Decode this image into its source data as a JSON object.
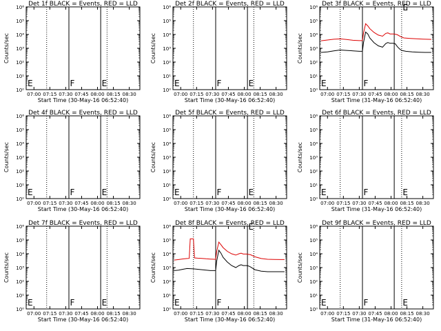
{
  "colors": {
    "events": "#000000",
    "lld": "#dd0000",
    "axes": "#000000",
    "background": "#ffffff"
  },
  "figure": {
    "rows": 3,
    "cols": 3
  },
  "chart_data": [
    {
      "type": "line",
      "title": "Det 1f BLACK = Events, RED = LLD",
      "xlabel": "Start Time (30-May-16 06:52:40)",
      "ylabel": "Counts/sec",
      "xlim": [
        "06:52:40",
        "08:40:00"
      ],
      "x_ticks": [
        "07:00",
        "07:15",
        "07:30",
        "07:45",
        "08:00",
        "08:15",
        "08:30"
      ],
      "ylim": [
        1,
        1000000
      ],
      "yscale": "log",
      "y_ticks": [
        "10^0",
        "10^1",
        "10^2",
        "10^3",
        "10^4",
        "10^5",
        "10^6"
      ],
      "solid_lines": [
        "07:33",
        "08:03"
      ],
      "dotted_lines": [
        "07:12",
        "08:09"
      ],
      "markers": [
        {
          "text": "E",
          "x": "06:54"
        },
        {
          "text": "F",
          "x": "07:34"
        },
        {
          "text": "E",
          "x": "08:04"
        }
      ],
      "series": []
    },
    {
      "type": "line",
      "title": "Det 2f BLACK = Events, RED = LLD",
      "xlabel": "Start Time (30-May-16 06:52:40)",
      "ylabel": "Counts/sec",
      "xlim": [
        "06:52:40",
        "08:40:00"
      ],
      "x_ticks": [
        "07:00",
        "07:15",
        "07:30",
        "07:45",
        "08:00",
        "08:15",
        "08:30"
      ],
      "ylim": [
        1,
        1000000
      ],
      "yscale": "log",
      "y_ticks": [
        "10^0",
        "10^1",
        "10^2",
        "10^3",
        "10^4",
        "10^5",
        "10^6"
      ],
      "solid_lines": [
        "07:33",
        "08:03"
      ],
      "dotted_lines": [
        "07:12",
        "08:09"
      ],
      "markers": [
        {
          "text": "E",
          "x": "06:54"
        },
        {
          "text": "F",
          "x": "07:34"
        },
        {
          "text": "E",
          "x": "08:04"
        }
      ],
      "series": []
    },
    {
      "type": "line",
      "title": "Det 3f BLACK = Events, RED = LLD",
      "xlabel": "Start Time (31-May-16 06:52:40)",
      "ylabel": "Counts/sec",
      "xlim": [
        "06:52:40",
        "08:40:00"
      ],
      "x_ticks": [
        "07:00",
        "07:15",
        "07:30",
        "07:45",
        "08:00",
        "08:15",
        "08:30"
      ],
      "ylim": [
        1,
        1000000
      ],
      "yscale": "log",
      "y_ticks": [
        "10^0",
        "10^1",
        "10^2",
        "10^3",
        "10^4",
        "10^5",
        "10^6"
      ],
      "solid_lines": [
        "07:33",
        "08:03"
      ],
      "dotted_lines": [
        "07:12",
        "08:10"
      ],
      "markers": [
        {
          "text": "E",
          "x": "06:54"
        },
        {
          "text": "F",
          "x": "07:34"
        },
        {
          "text": "E",
          "x": "08:11",
          "y": 900000
        }
      ],
      "series": [
        {
          "name": "LLD",
          "color": "#dd0000",
          "x": [
            "06:54",
            "07:00",
            "07:06",
            "07:12",
            "07:18",
            "07:24",
            "07:30",
            "07:33",
            "07:34",
            "07:36",
            "07:38",
            "07:40",
            "07:44",
            "07:48",
            "07:52",
            "07:55",
            "07:57",
            "07:59",
            "08:02",
            "08:04",
            "08:06",
            "08:09",
            "08:12",
            "08:18",
            "08:24",
            "08:30",
            "08:38"
          ],
          "y": [
            3500,
            4000,
            4500,
            4800,
            4300,
            3800,
            3600,
            3600,
            12000,
            60000,
            42000,
            26000,
            14000,
            9000,
            7500,
            12000,
            13000,
            11000,
            11000,
            10500,
            9500,
            7000,
            5600,
            5200,
            4900,
            4600,
            4400
          ]
        },
        {
          "name": "Events",
          "color": "#000000",
          "x": [
            "06:54",
            "07:00",
            "07:06",
            "07:12",
            "07:18",
            "07:24",
            "07:30",
            "07:33",
            "07:34",
            "07:36",
            "07:38",
            "07:40",
            "07:44",
            "07:48",
            "07:52",
            "07:55",
            "07:57",
            "07:59",
            "08:02",
            "08:04",
            "08:06",
            "08:08",
            "08:10",
            "08:14",
            "08:20",
            "08:26",
            "08:32",
            "08:38"
          ],
          "y": [
            500,
            550,
            650,
            750,
            700,
            650,
            600,
            600,
            2500,
            15000,
            11000,
            5500,
            2500,
            1500,
            1200,
            2200,
            2600,
            2300,
            2300,
            2100,
            1300,
            900,
            700,
            600,
            550,
            520,
            500,
            500
          ]
        }
      ]
    },
    {
      "type": "line",
      "title": "Det 4f BLACK = Events, RED = LLD",
      "xlabel": "Start Time (30-May-16 06:52:40)",
      "ylabel": "Counts/sec",
      "xlim": [
        "06:52:40",
        "08:40:00"
      ],
      "x_ticks": [
        "07:00",
        "07:15",
        "07:30",
        "07:45",
        "08:00",
        "08:15",
        "08:30"
      ],
      "ylim": [
        1,
        1000000
      ],
      "yscale": "log",
      "y_ticks": [
        "10^0",
        "10^1",
        "10^2",
        "10^3",
        "10^4",
        "10^5",
        "10^6"
      ],
      "solid_lines": [
        "07:33",
        "08:03"
      ],
      "dotted_lines": [
        "07:12",
        "08:09"
      ],
      "markers": [
        {
          "text": "E",
          "x": "06:54"
        },
        {
          "text": "F",
          "x": "07:34"
        },
        {
          "text": "E",
          "x": "08:04"
        }
      ],
      "series": []
    },
    {
      "type": "line",
      "title": "Det 5f BLACK = Events, RED = LLD",
      "xlabel": "Start Time (30-May-16 06:52:40)",
      "ylabel": "Counts/sec",
      "xlim": [
        "06:52:40",
        "08:40:00"
      ],
      "x_ticks": [
        "07:00",
        "07:15",
        "07:30",
        "07:45",
        "08:00",
        "08:15",
        "08:30"
      ],
      "ylim": [
        1,
        1000000
      ],
      "yscale": "log",
      "y_ticks": [
        "10^0",
        "10^1",
        "10^2",
        "10^3",
        "10^4",
        "10^5",
        "10^6"
      ],
      "solid_lines": [
        "07:33",
        "08:03"
      ],
      "dotted_lines": [
        "07:12",
        "08:09"
      ],
      "markers": [
        {
          "text": "E",
          "x": "06:54"
        },
        {
          "text": "F",
          "x": "07:34"
        },
        {
          "text": "E",
          "x": "08:04"
        }
      ],
      "series": []
    },
    {
      "type": "line",
      "title": "Det 6f BLACK = Events, RED = LLD",
      "xlabel": "Start Time (31-May-16 06:52:40)",
      "ylabel": "Counts/sec",
      "xlim": [
        "06:52:40",
        "08:40:00"
      ],
      "x_ticks": [
        "07:00",
        "07:15",
        "07:30",
        "07:45",
        "08:00",
        "08:15",
        "08:30"
      ],
      "ylim": [
        1,
        1000000
      ],
      "yscale": "log",
      "y_ticks": [
        "10^0",
        "10^1",
        "10^2",
        "10^3",
        "10^4",
        "10^5",
        "10^6"
      ],
      "solid_lines": [
        "07:33",
        "08:03"
      ],
      "dotted_lines": [
        "07:12",
        "08:10"
      ],
      "markers": [
        {
          "text": "E",
          "x": "06:54"
        },
        {
          "text": "F",
          "x": "07:34"
        },
        {
          "text": "E",
          "x": "08:11"
        }
      ],
      "series": []
    },
    {
      "type": "line",
      "title": "Det 7f BLACK = Events, RED = LLD",
      "xlabel": "Start Time (30-May-16 06:52:40)",
      "ylabel": "Counts/sec",
      "xlim": [
        "06:52:40",
        "08:40:00"
      ],
      "x_ticks": [
        "07:00",
        "07:15",
        "07:30",
        "07:45",
        "08:00",
        "08:15",
        "08:30"
      ],
      "ylim": [
        1,
        1000000
      ],
      "yscale": "log",
      "y_ticks": [
        "10^0",
        "10^1",
        "10^2",
        "10^3",
        "10^4",
        "10^5",
        "10^6"
      ],
      "solid_lines": [
        "07:33",
        "08:03"
      ],
      "dotted_lines": [
        "07:12",
        "08:09"
      ],
      "markers": [
        {
          "text": "E",
          "x": "06:54"
        },
        {
          "text": "F",
          "x": "07:34"
        },
        {
          "text": "E",
          "x": "08:04"
        }
      ],
      "series": []
    },
    {
      "type": "line",
      "title": "Det 8f BLACK = Events, RED = LLD",
      "xlabel": "Start Time (30-May-16 06:52:40)",
      "ylabel": "Counts/sec",
      "xlim": [
        "06:52:40",
        "08:40:00"
      ],
      "x_ticks": [
        "07:00",
        "07:15",
        "07:30",
        "07:45",
        "08:00",
        "08:15",
        "08:30"
      ],
      "ylim": [
        1,
        1000000
      ],
      "yscale": "log",
      "y_ticks": [
        "10^0",
        "10^1",
        "10^2",
        "10^3",
        "10^4",
        "10^5",
        "10^6"
      ],
      "solid_lines": [
        "07:33",
        "08:03"
      ],
      "dotted_lines": [
        "07:12",
        "08:09"
      ],
      "markers": [
        {
          "text": "E",
          "x": "06:54"
        },
        {
          "text": "F",
          "x": "07:34"
        },
        {
          "text": "E",
          "x": "08:04",
          "y": 900000
        }
      ],
      "series": [
        {
          "name": "LLD",
          "color": "#dd0000",
          "x": [
            "06:54",
            "06:58",
            "07:02",
            "07:06",
            "07:08",
            "07:09",
            "07:12",
            "07:13",
            "07:16",
            "07:20",
            "07:24",
            "07:28",
            "07:32",
            "07:33",
            "07:34",
            "07:36",
            "07:38",
            "07:40",
            "07:44",
            "07:48",
            "07:52",
            "07:55",
            "07:57",
            "07:59",
            "08:02",
            "08:04",
            "08:06",
            "08:10",
            "08:16",
            "08:22",
            "08:28",
            "08:34",
            "08:38"
          ],
          "y": [
            3500,
            3800,
            4200,
            4500,
            4600,
            120000,
            120000,
            5000,
            4800,
            4600,
            4300,
            4100,
            4000,
            4000,
            15000,
            70000,
            45000,
            28000,
            15000,
            10000,
            8000,
            10000,
            11000,
            9500,
            9500,
            9000,
            8500,
            6000,
            4500,
            4000,
            3900,
            3800,
            3800
          ]
        },
        {
          "name": "Events",
          "color": "#000000",
          "x": [
            "06:54",
            "06:58",
            "07:02",
            "07:06",
            "07:12",
            "07:16",
            "07:20",
            "07:24",
            "07:28",
            "07:32",
            "07:33",
            "07:34",
            "07:36",
            "07:38",
            "07:40",
            "07:44",
            "07:48",
            "07:52",
            "07:55",
            "07:57",
            "07:59",
            "08:02",
            "08:04",
            "08:06",
            "08:10",
            "08:16",
            "08:22",
            "08:28",
            "08:34",
            "08:38"
          ],
          "y": [
            600,
            650,
            750,
            850,
            800,
            750,
            700,
            650,
            600,
            600,
            600,
            3000,
            18000,
            11000,
            5500,
            2500,
            1400,
            1000,
            1400,
            1600,
            1400,
            1400,
            1300,
            1100,
            700,
            550,
            500,
            500,
            500,
            500
          ]
        }
      ]
    },
    {
      "type": "line",
      "title": "Det 9f BLACK = Events, RED = LLD",
      "xlabel": "Start Time (31-May-16 06:52:40)",
      "ylabel": "Counts/sec",
      "xlim": [
        "06:52:40",
        "08:40:00"
      ],
      "x_ticks": [
        "07:00",
        "07:15",
        "07:30",
        "07:45",
        "08:00",
        "08:15",
        "08:30"
      ],
      "ylim": [
        1,
        1000000
      ],
      "yscale": "log",
      "y_ticks": [
        "10^0",
        "10^1",
        "10^2",
        "10^3",
        "10^4",
        "10^5",
        "10^6"
      ],
      "solid_lines": [
        "07:33",
        "08:03"
      ],
      "dotted_lines": [
        "07:12",
        "08:10"
      ],
      "markers": [
        {
          "text": "E",
          "x": "06:54"
        },
        {
          "text": "F",
          "x": "07:34"
        },
        {
          "text": "E",
          "x": "08:11"
        }
      ],
      "series": []
    }
  ]
}
